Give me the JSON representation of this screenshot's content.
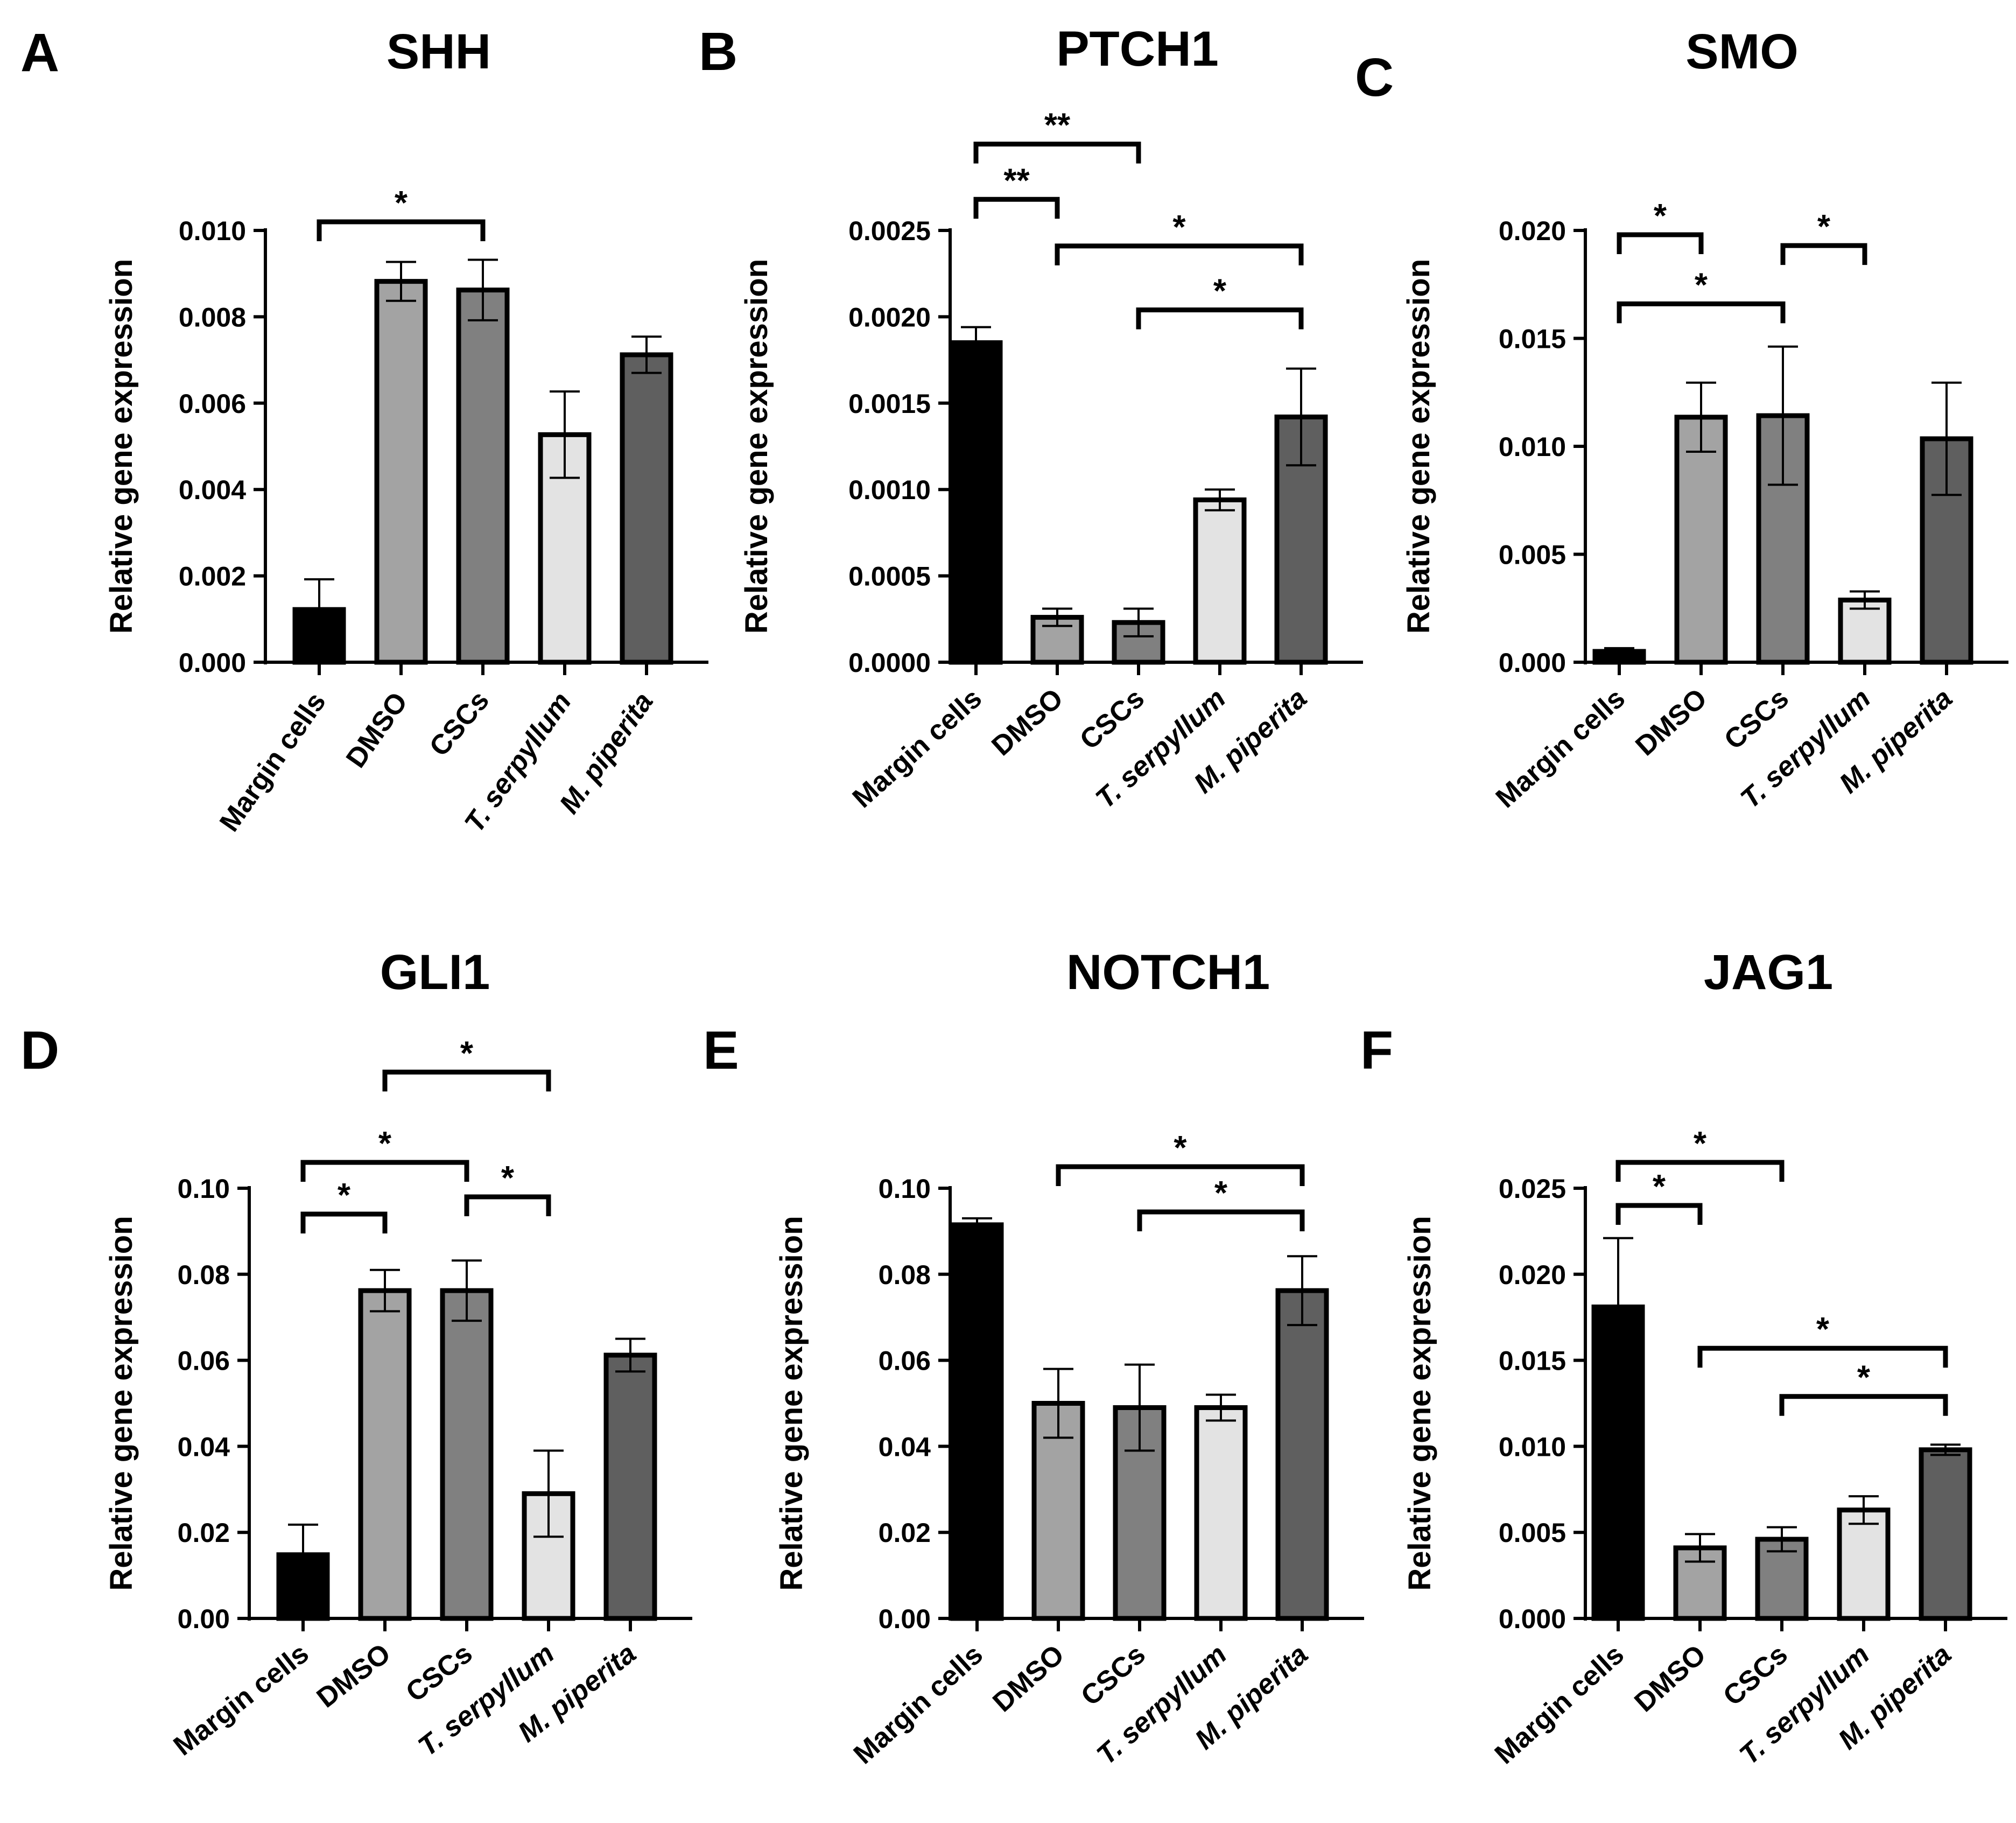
{
  "figure": {
    "colors": {
      "Margin cells": "#000000",
      "DMSO": "#a3a3a3",
      "CSCs": "#808080",
      "T. serpyllum": "#e3e3e3",
      "M. piperita": "#5f5f5f"
    }
  },
  "chart_data": [
    {
      "panel": "A",
      "type": "bar",
      "title": "SHH",
      "ylabel": "Relative gene expression",
      "xlabel": "",
      "ylim": [
        0,
        0.01
      ],
      "yticks": [
        "0.000",
        "0.002",
        "0.004",
        "0.006",
        "0.008",
        "0.010"
      ],
      "categories": [
        "Margin cells",
        "DMSO",
        "CSCs",
        "T. serpyllum",
        "M. piperita"
      ],
      "italic": [
        false,
        false,
        false,
        true,
        true
      ],
      "values": [
        0.00122,
        0.00882,
        0.00862,
        0.00527,
        0.00712
      ],
      "errors": [
        0.0007,
        0.00045,
        0.0007,
        0.001,
        0.00042
      ],
      "significance": [
        {
          "from": 0,
          "to": 2,
          "label": "*",
          "y": 0.0102
        }
      ]
    },
    {
      "panel": "B",
      "type": "bar",
      "title": "PTCH1",
      "ylabel": "Relative gene expression",
      "xlabel": "",
      "ylim": [
        0,
        0.0025
      ],
      "yticks": [
        "0.0000",
        "0.0005",
        "0.0010",
        "0.0015",
        "0.0020",
        "0.0025"
      ],
      "categories": [
        "Margin cells",
        "DMSO",
        "CSCs",
        "T. serpyllum",
        "M. piperita"
      ],
      "italic": [
        false,
        false,
        false,
        true,
        true
      ],
      "values": [
        0.00185,
        0.00026,
        0.00023,
        0.00094,
        0.00142
      ],
      "errors": [
        9e-05,
        5e-05,
        8e-05,
        6e-05,
        0.00028
      ],
      "significance": [
        {
          "from": 0,
          "to": 2,
          "label": "**",
          "y": 0.003
        },
        {
          "from": 0,
          "to": 1,
          "label": "**",
          "y": 0.00268
        },
        {
          "from": 1,
          "to": 4,
          "label": "*",
          "y": 0.00241
        },
        {
          "from": 2,
          "to": 4,
          "label": "*",
          "y": 0.00204
        }
      ]
    },
    {
      "panel": "C",
      "type": "bar",
      "title": "SMO",
      "ylabel": "Relative gene expression",
      "xlabel": "",
      "ylim": [
        0,
        0.02
      ],
      "yticks": [
        "0.000",
        "0.005",
        "0.010",
        "0.015",
        "0.020"
      ],
      "categories": [
        "Margin cells",
        "DMSO",
        "CSCs",
        "T. serpyllum",
        "M. piperita"
      ],
      "italic": [
        false,
        false,
        false,
        true,
        true
      ],
      "values": [
        0.0005,
        0.01135,
        0.01142,
        0.00288,
        0.01035
      ],
      "errors": [
        0.00015,
        0.0016,
        0.0032,
        0.0004,
        0.0026
      ],
      "significance": [
        {
          "from": 0,
          "to": 1,
          "label": "*",
          "y": 0.0198
        },
        {
          "from": 2,
          "to": 3,
          "label": "*",
          "y": 0.0193
        },
        {
          "from": 0,
          "to": 2,
          "label": "*",
          "y": 0.0166
        }
      ]
    },
    {
      "panel": "D",
      "type": "bar",
      "title": "GLI1",
      "ylabel": "Relative gene expression",
      "xlabel": "",
      "ylim": [
        0,
        0.1
      ],
      "yticks": [
        "0.00",
        "0.02",
        "0.04",
        "0.06",
        "0.08",
        "0.10"
      ],
      "categories": [
        "Margin cells",
        "DMSO",
        "CSCs",
        "T. serpyllum",
        "M. piperita"
      ],
      "italic": [
        false,
        false,
        false,
        true,
        true
      ],
      "values": [
        0.0148,
        0.0762,
        0.0762,
        0.029,
        0.0612
      ],
      "errors": [
        0.007,
        0.0048,
        0.007,
        0.01,
        0.0038
      ],
      "significance": [
        {
          "from": 1,
          "to": 3,
          "label": "*",
          "y": 0.127
        },
        {
          "from": 0,
          "to": 2,
          "label": "*",
          "y": 0.106
        },
        {
          "from": 0,
          "to": 1,
          "label": "*",
          "y": 0.094
        },
        {
          "from": 2,
          "to": 3,
          "label": "*",
          "y": 0.098
        }
      ]
    },
    {
      "panel": "E",
      "type": "bar",
      "title": "NOTCH1",
      "ylabel": "Relative gene expression",
      "xlabel": "",
      "ylim": [
        0,
        0.1
      ],
      "yticks": [
        "0.00",
        "0.02",
        "0.04",
        "0.06",
        "0.08",
        "0.10"
      ],
      "categories": [
        "Margin cells",
        "DMSO",
        "CSCs",
        "T. serpyllum",
        "M. piperita"
      ],
      "italic": [
        false,
        false,
        false,
        true,
        true
      ],
      "values": [
        0.0915,
        0.05,
        0.049,
        0.049,
        0.0762
      ],
      "errors": [
        0.0015,
        0.008,
        0.01,
        0.003,
        0.008
      ],
      "significance": [
        {
          "from": 1,
          "to": 4,
          "label": "*",
          "y": 0.105
        },
        {
          "from": 2,
          "to": 4,
          "label": "*",
          "y": 0.0945
        }
      ]
    },
    {
      "panel": "F",
      "type": "bar",
      "title": "JAG1",
      "ylabel": "Relative gene expression",
      "xlabel": "",
      "ylim": [
        0,
        0.025
      ],
      "yticks": [
        "0.000",
        "0.005",
        "0.010",
        "0.015",
        "0.020",
        "0.025"
      ],
      "categories": [
        "Margin cells",
        "DMSO",
        "CSCs",
        "T. serpyllum",
        "M. piperita"
      ],
      "italic": [
        false,
        false,
        false,
        true,
        true
      ],
      "values": [
        0.0181,
        0.0041,
        0.0046,
        0.0063,
        0.0098
      ],
      "errors": [
        0.004,
        0.0008,
        0.0007,
        0.0008,
        0.0003
      ],
      "significance": [
        {
          "from": 0,
          "to": 2,
          "label": "*",
          "y": 0.0265
        },
        {
          "from": 0,
          "to": 1,
          "label": "*",
          "y": 0.024
        },
        {
          "from": 1,
          "to": 4,
          "label": "*",
          "y": 0.0157
        },
        {
          "from": 2,
          "to": 4,
          "label": "*",
          "y": 0.0129
        }
      ]
    }
  ]
}
